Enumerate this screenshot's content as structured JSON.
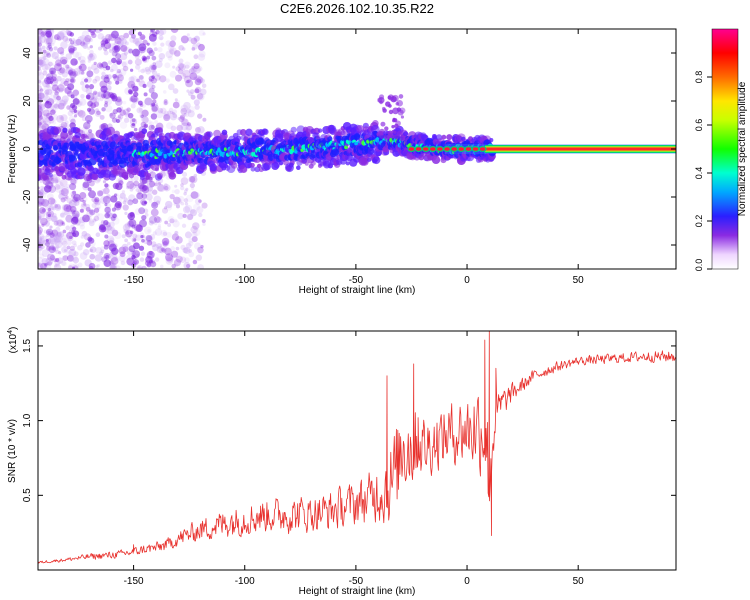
{
  "title": "C2E6.2026.102.10.35.R22",
  "chart_data": [
    {
      "type": "heatmap",
      "name": "spectrogram",
      "xlabel": "Height of straight line (km)",
      "ylabel": "Frequency (Hz)",
      "xlim": [
        -193,
        94
      ],
      "ylim": [
        -50,
        50
      ],
      "xticks": [
        -150,
        -100,
        -50,
        0,
        50
      ],
      "xtick_labels": [
        "-150",
        "-100",
        "-50",
        "0",
        "50"
      ],
      "yticks": [
        -40,
        -20,
        0,
        20,
        40
      ],
      "ytick_labels": [
        "-40",
        "-20",
        "0",
        "20",
        "40"
      ],
      "ridge_x": [
        -140,
        -120,
        -100,
        -80,
        -60,
        -50,
        -40,
        -30,
        -20,
        -10,
        0,
        10,
        50,
        94
      ],
      "ridge_y": [
        -2,
        -1,
        -1,
        0,
        1,
        2,
        3,
        3,
        1,
        0,
        0,
        0,
        0,
        0
      ],
      "colorbar": {
        "label": "Normalized spectral amplitude",
        "range": [
          0,
          1
        ],
        "ticks": [
          0,
          0.2,
          0.4,
          0.6,
          0.8
        ],
        "tick_labels": [
          "0.0",
          "0.2",
          "0.4",
          "0.6",
          "0.8"
        ]
      }
    },
    {
      "type": "line",
      "name": "snr",
      "xlabel": "Height of straight line (km)",
      "ylabel": "SNR (10 * v/v)",
      "exponent_label": "(x10",
      "exponent_power": "4",
      "color": "#e8322e",
      "xlim": [
        -193,
        94
      ],
      "ylim": [
        0,
        16000
      ],
      "xticks": [
        -150,
        -100,
        -50,
        0,
        50
      ],
      "xtick_labels": [
        "-150",
        "-100",
        "-50",
        "0",
        "50"
      ],
      "yticks": [
        5000,
        10000,
        15000
      ],
      "ytick_labels": [
        "0.5",
        "1.0",
        "1.5"
      ],
      "x": [
        -193,
        -180,
        -170,
        -160,
        -155,
        -150,
        -145,
        -140,
        -135,
        -130,
        -120,
        -110,
        -100,
        -90,
        -80,
        -70,
        -60,
        -50,
        -45,
        -40,
        -35,
        -32,
        -29,
        -25,
        -22,
        -19,
        -15,
        -10,
        -5,
        0,
        5,
        8,
        10,
        12,
        15,
        20,
        25,
        30,
        40,
        50,
        60,
        70,
        80,
        94
      ],
      "y": [
        500,
        700,
        900,
        1000,
        1100,
        1200,
        1400,
        1500,
        1700,
        2100,
        2700,
        3100,
        3400,
        3700,
        3700,
        3800,
        4000,
        4500,
        4700,
        5200,
        5600,
        6500,
        8600,
        8200,
        8600,
        8200,
        8600,
        9000,
        9200,
        9400,
        9600,
        9400,
        6000,
        9800,
        11000,
        11800,
        12400,
        13000,
        13600,
        14000,
        14100,
        14200,
        14300,
        14300
      ],
      "noise": [
        100,
        150,
        250,
        300,
        300,
        350,
        400,
        450,
        500,
        650,
        900,
        1200,
        1300,
        1400,
        1500,
        1500,
        1600,
        1800,
        2000,
        2400,
        3200,
        4000,
        4000,
        3500,
        3000,
        2600,
        2400,
        2400,
        2600,
        2800,
        3600,
        4000,
        4000,
        2600,
        1400,
        800,
        600,
        500,
        400,
        350,
        400,
        400,
        450,
        500
      ],
      "spikes": [
        [
          -150,
          1700
        ],
        [
          -36,
          13000
        ],
        [
          -24,
          13800
        ],
        [
          -22,
          10200
        ],
        [
          8,
          15400
        ],
        [
          10,
          16000
        ],
        [
          11,
          2300
        ],
        [
          13,
          13500
        ]
      ]
    }
  ]
}
